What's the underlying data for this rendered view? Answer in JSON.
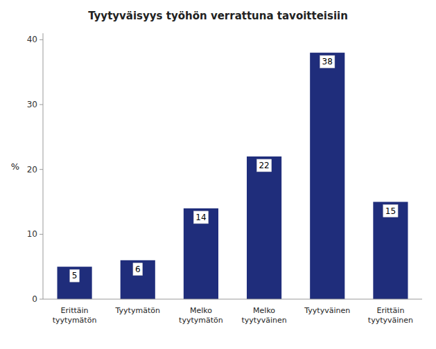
{
  "chart_data": {
    "type": "bar",
    "title": "Tyytyväisyys työhön verrattuna tavoitteisiin",
    "categories": [
      "Erittäin\ntyytymätön",
      "Tyytymätön",
      "Melko\ntyytymätön",
      "Melko\ntyytyväinen",
      "Tyytyväinen",
      "Erittäin\ntyytyväinen"
    ],
    "values": [
      5,
      6,
      14,
      22,
      38,
      15
    ],
    "color": "#1F2D7B",
    "ylabel": "%",
    "ylim": [
      0,
      41
    ],
    "yticks": [
      0,
      10,
      20,
      30,
      40
    ],
    "grid": false,
    "data_labels": true
  }
}
